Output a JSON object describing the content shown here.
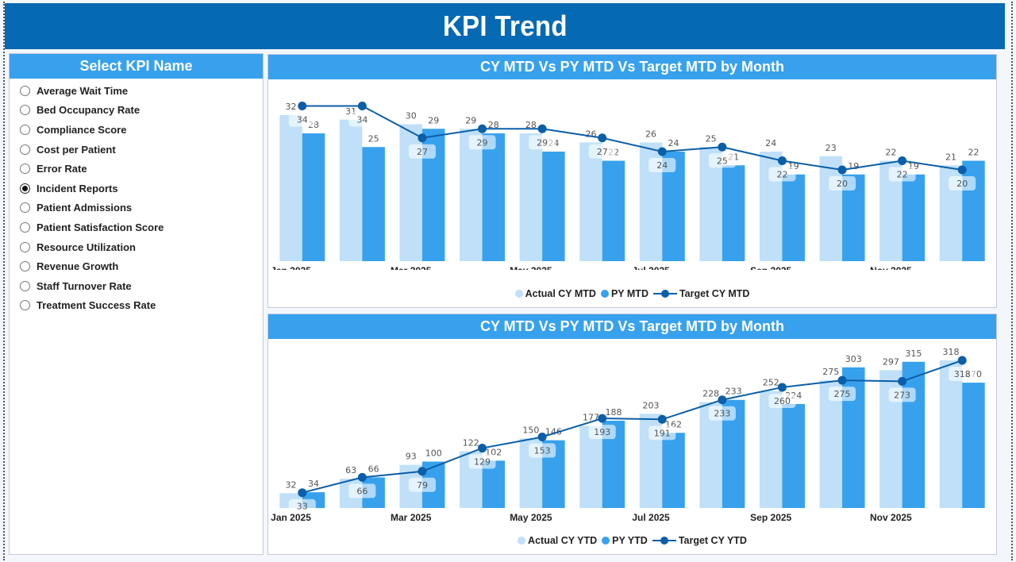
{
  "header": {
    "title": "KPI Trend"
  },
  "slicer": {
    "title": "Select KPI Name",
    "items": [
      {
        "label": "Average Wait Time",
        "selected": false
      },
      {
        "label": "Bed Occupancy Rate",
        "selected": false
      },
      {
        "label": "Compliance Score",
        "selected": false
      },
      {
        "label": "Cost per Patient",
        "selected": false
      },
      {
        "label": "Error Rate",
        "selected": false
      },
      {
        "label": "Incident Reports",
        "selected": true
      },
      {
        "label": "Patient Admissions",
        "selected": false
      },
      {
        "label": "Patient Satisfaction Score",
        "selected": false
      },
      {
        "label": "Resource Utilization",
        "selected": false
      },
      {
        "label": "Revenue Growth",
        "selected": false
      },
      {
        "label": "Staff Turnover Rate",
        "selected": false
      },
      {
        "label": "Treatment Success Rate",
        "selected": false
      }
    ]
  },
  "colors": {
    "actual": "#bfe0f8",
    "py": "#37a1ee",
    "target": "#0b5ea8",
    "header": "#0669b4"
  },
  "chart_data": [
    {
      "type": "bar",
      "title": "CY MTD Vs PY MTD Vs Target MTD by Month",
      "categories": [
        "Jan 2025",
        "Feb 2025",
        "Mar 2025",
        "Apr 2025",
        "May 2025",
        "Jun 2025",
        "Jul 2025",
        "Aug 2025",
        "Sep 2025",
        "Oct 2025",
        "Nov 2025",
        "Dec 2025"
      ],
      "tick_labels": [
        "Jan 2025",
        "",
        "Mar 2025",
        "",
        "May 2025",
        "",
        "Jul 2025",
        "",
        "Sep 2025",
        "",
        "Nov 2025",
        ""
      ],
      "series": [
        {
          "name": "Actual CY MTD",
          "kind": "bar",
          "values": [
            32,
            31,
            30,
            29,
            28,
            26,
            26,
            25,
            24,
            23,
            22,
            21
          ]
        },
        {
          "name": "PY MTD",
          "kind": "bar",
          "values": [
            28,
            25,
            29,
            28,
            24,
            22,
            24,
            21,
            19,
            19,
            19,
            22
          ]
        },
        {
          "name": "Target CY MTD",
          "kind": "line",
          "values": [
            34,
            34,
            27,
            29,
            29,
            27,
            24,
            25,
            22,
            20,
            22,
            20
          ]
        }
      ],
      "ylim": [
        0,
        36
      ],
      "legend": [
        "Actual CY MTD",
        "PY MTD",
        "Target CY MTD"
      ],
      "legend_position": "bottom-center",
      "grid": false
    },
    {
      "type": "bar",
      "title": "CY MTD Vs PY MTD Vs Target MTD by Month",
      "categories": [
        "Jan 2025",
        "Feb 2025",
        "Mar 2025",
        "Apr 2025",
        "May 2025",
        "Jun 2025",
        "Jul 2025",
        "Aug 2025",
        "Sep 2025",
        "Oct 2025",
        "Nov 2025",
        "Dec 2025"
      ],
      "tick_labels": [
        "Jan 2025",
        "",
        "Mar 2025",
        "",
        "May 2025",
        "",
        "Jul 2025",
        "",
        "Sep 2025",
        "",
        "Nov 2025",
        ""
      ],
      "series": [
        {
          "name": "Actual CY YTD",
          "kind": "bar",
          "values": [
            32,
            63,
            93,
            122,
            150,
            177,
            203,
            228,
            252,
            275,
            297,
            318
          ]
        },
        {
          "name": "PY YTD",
          "kind": "bar",
          "values": [
            34,
            66,
            100,
            102,
            146,
            188,
            162,
            233,
            224,
            303,
            315,
            270
          ]
        },
        {
          "name": "Target CY YTD",
          "kind": "line",
          "values": [
            33,
            66,
            79,
            129,
            153,
            193,
            191,
            233,
            260,
            275,
            273,
            318
          ]
        }
      ],
      "ylim": [
        0,
        330
      ],
      "legend": [
        "Actual CY YTD",
        "PY YTD",
        "Target CY YTD"
      ],
      "legend_position": "bottom-center",
      "grid": false
    }
  ]
}
